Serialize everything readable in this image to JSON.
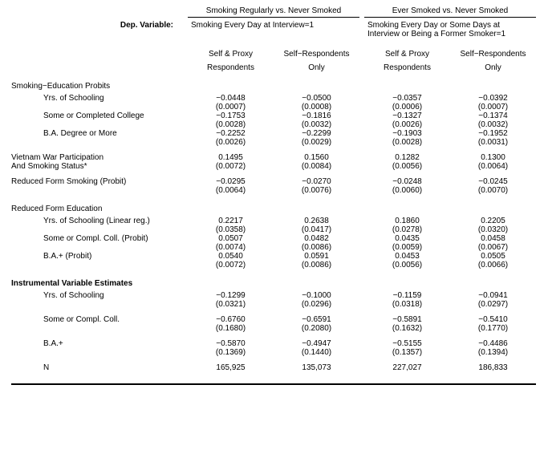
{
  "group1_header": "Smoking  Regularly vs. Never Smoked",
  "group2_header": "Ever Smoked vs. Never Smoked",
  "dep_label": "Dep. Variable:",
  "dep1": "Smoking Every Day at Interview=1",
  "dep2a": "Smoking Every Day or Some Days at",
  "dep2b": "Interview or Being a Former Smoker=1",
  "ch1a": "Self & Proxy",
  "ch1b": "Respondents",
  "ch2a": "Self−Respondents",
  "ch2b": "Only",
  "ch3a": "Self & Proxy",
  "ch3b": "Respondents",
  "ch4a": "Self−Respondents",
  "ch4b": "Only",
  "sec_probits": "Smoking−Education Probits",
  "r_yrs": "Yrs. of Schooling",
  "r_some": "Some or Completed College",
  "r_ba": "B.A. Degree or More",
  "sec_viet1": "Vietnam War Participation",
  "sec_viet2": "And Smoking Status*",
  "sec_rfs": "Reduced Form Smoking (Probit)",
  "sec_rfe": "Reduced Form Education",
  "r_yrs_lin": "Yrs. of  Schooling (Linear reg.)",
  "r_some_p": "Some or Compl. Coll. (Probit)",
  "r_ba_p": "B.A.+ (Probit)",
  "sec_iv": "Instrumental Variable Estimates",
  "r_yrs2": "Yrs. of Schooling",
  "r_some2": "Some or Compl. Coll.",
  "r_ba2": "B.A.+",
  "r_n": "N",
  "v": {
    "yrs": {
      "c1": "−0.0448",
      "s1": "(0.0007)",
      "c2": "−0.0500",
      "s2": "(0.0008)",
      "c3": "−0.0357",
      "s3": "(0.0006)",
      "c4": "−0.0392",
      "s4": "(0.0007)"
    },
    "some": {
      "c1": "−0.1753",
      "s1": "(0.0028)",
      "c2": "−0.1816",
      "s2": "(0.0032)",
      "c3": "−0.1327",
      "s3": "(0.0026)",
      "c4": "−0.1374",
      "s4": "(0.0032)"
    },
    "ba": {
      "c1": "−0.2252",
      "s1": "(0.0026)",
      "c2": "−0.2299",
      "s2": "(0.0029)",
      "c3": "−0.1903",
      "s3": "(0.0028)",
      "c4": "−0.1952",
      "s4": "(0.0031)"
    },
    "viet": {
      "c1": "0.1495",
      "s1": "(0.0072)",
      "c2": "0.1560",
      "s2": "(0.0084)",
      "c3": "0.1282",
      "s3": "(0.0056)",
      "c4": "0.1300",
      "s4": "(0.0064)"
    },
    "rfs": {
      "c1": "−0.0295",
      "s1": "(0.0064)",
      "c2": "−0.0270",
      "s2": "(0.0076)",
      "c3": "−0.0248",
      "s3": "(0.0060)",
      "c4": "−0.0245",
      "s4": "(0.0070)"
    },
    "yrslin": {
      "c1": "0.2217",
      "s1": "(0.0358)",
      "c2": "0.2638",
      "s2": "(0.0417)",
      "c3": "0.1860",
      "s3": "(0.0278)",
      "c4": "0.2205",
      "s4": "(0.0320)"
    },
    "somep": {
      "c1": "0.0507",
      "s1": "(0.0074)",
      "c2": "0.0482",
      "s2": "(0.0086)",
      "c3": "0.0435",
      "s3": "(0.0059)",
      "c4": "0.0458",
      "s4": "(0.0067)"
    },
    "bap": {
      "c1": "0.0540",
      "s1": "(0.0072)",
      "c2": "0.0591",
      "s2": "(0.0086)",
      "c3": "0.0453",
      "s3": "(0.0056)",
      "c4": "0.0505",
      "s4": "(0.0066)"
    },
    "ivyrs": {
      "c1": "−0.1299",
      "s1": "(0.0321)",
      "c2": "−0.1000",
      "s2": "(0.0296)",
      "c3": "−0.1159",
      "s3": "(0.0318)",
      "c4": "−0.0941",
      "s4": "(0.0297)"
    },
    "ivsome": {
      "c1": "−0.6760",
      "s1": "(0.1680)",
      "c2": "−0.6591",
      "s2": "(0.2080)",
      "c3": "−0.5891",
      "s3": "(0.1632)",
      "c4": "−0.5410",
      "s4": "(0.1770)"
    },
    "ivba": {
      "c1": "−0.5870",
      "s1": "(0.1369)",
      "c2": "−0.4947",
      "s2": "(0.1440)",
      "c3": "−0.5155",
      "s3": "(0.1357)",
      "c4": "−0.4486",
      "s4": "(0.1394)"
    },
    "n": {
      "c1": "165,925",
      "c2": "135,073",
      "c3": "227,027",
      "c4": "186,833"
    }
  }
}
